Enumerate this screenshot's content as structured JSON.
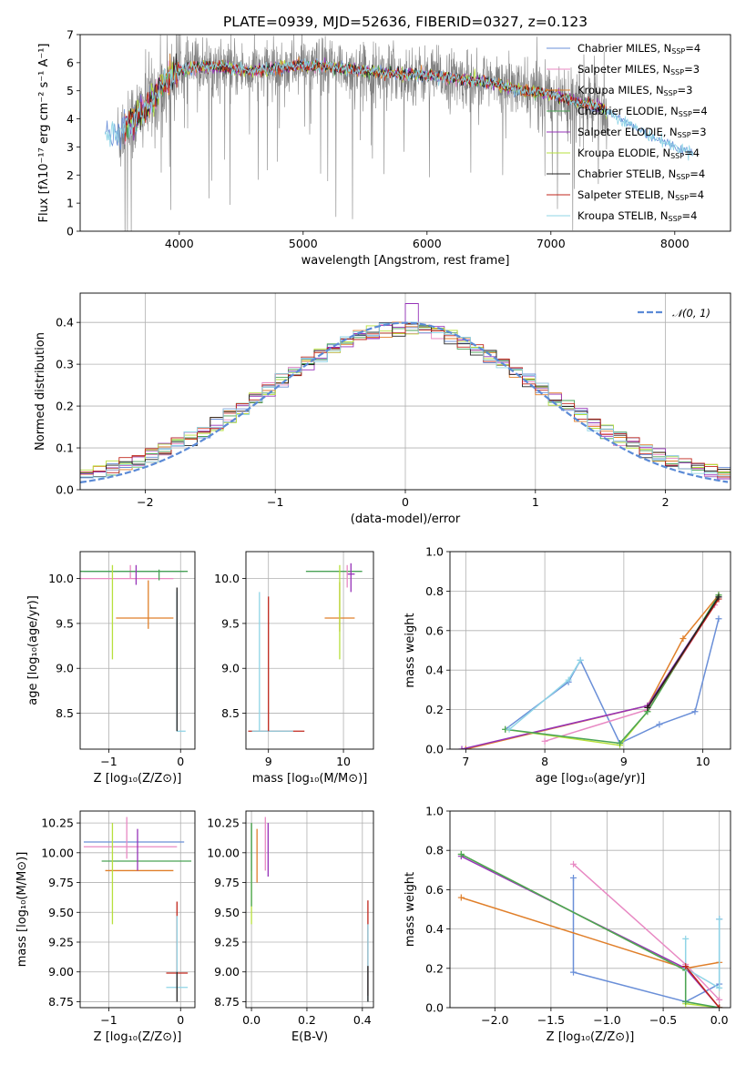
{
  "chart_data": [
    {
      "id": "spectrum",
      "type": "line",
      "title": "PLATE=0939, MJD=52636, FIBERID=0327, z=0.123",
      "xlabel": "wavelength [Angstrom, rest frame]",
      "ylabel": "Flux [fλ10⁻¹⁷ erg cm⁻² s⁻¹ A⁻¹]",
      "xlim": [
        3200,
        8450
      ],
      "ylim": [
        0,
        7
      ],
      "xticks": [
        4000,
        5000,
        6000,
        7000,
        8000
      ],
      "yticks": [
        0,
        1,
        2,
        3,
        4,
        5,
        6,
        7
      ],
      "grid": false,
      "legend_position": "right",
      "legend": [
        {
          "label": "Chabrier MILES, N",
          "sub": "SSP",
          "suffix": "=4",
          "color": "#6a8fd8"
        },
        {
          "label": "Salpeter MILES, N",
          "sub": "SSP",
          "suffix": "=3",
          "color": "#e889c3"
        },
        {
          "label": "Kroupa MILES, N",
          "sub": "SSP",
          "suffix": "=3",
          "color": "#e07f2a"
        },
        {
          "label": "Chabrier ELODIE, N",
          "sub": "SSP",
          "suffix": "=4",
          "color": "#4aa356"
        },
        {
          "label": "Salpeter ELODIE, N",
          "sub": "SSP",
          "suffix": "=3",
          "color": "#9632b8"
        },
        {
          "label": "Kroupa ELODIE, N",
          "sub": "SSP",
          "suffix": "=4",
          "color": "#b7e03c"
        },
        {
          "label": "Chabrier STELIB, N",
          "sub": "SSP",
          "suffix": "=4",
          "color": "#222222"
        },
        {
          "label": "Salpeter STELIB, N",
          "sub": "SSP",
          "suffix": "=4",
          "color": "#c0261b"
        },
        {
          "label": "Kroupa STELIB, N",
          "sub": "SSP",
          "suffix": "=4",
          "color": "#8fd4e6"
        }
      ],
      "data_color": "#808080",
      "model_curve": {
        "x": [
          3400,
          3500,
          3550,
          3650,
          3700,
          3800,
          3900,
          3950,
          4000,
          4200,
          4400,
          4600,
          4800,
          5000,
          5200,
          5500,
          5800,
          6000,
          6200,
          6500,
          6800,
          7000,
          7200,
          7400,
          7600,
          7800,
          8000,
          8150
        ],
        "y": [
          3.45,
          3.3,
          3.7,
          4.0,
          4.3,
          4.8,
          5.3,
          5.55,
          5.75,
          5.9,
          5.8,
          5.7,
          5.8,
          5.9,
          5.85,
          5.7,
          5.6,
          5.55,
          5.45,
          5.3,
          5.0,
          4.9,
          4.6,
          4.4,
          3.9,
          3.4,
          3.0,
          2.8
        ]
      }
    },
    {
      "id": "residuals",
      "type": "step",
      "xlabel": "(data-model)/error",
      "ylabel": "Normed distribution",
      "xlim": [
        -2.5,
        2.5
      ],
      "ylim": [
        0,
        0.47
      ],
      "xticks": [
        -2,
        -1,
        0,
        1,
        2
      ],
      "yticks": [
        0.0,
        0.1,
        0.2,
        0.3,
        0.4
      ],
      "grid": true,
      "legend_position": "top-right",
      "normal_label": "𝒩(0, 1)",
      "normal_color": "#5b8ad6",
      "series_colors": [
        "#6a8fd8",
        "#e889c3",
        "#e07f2a",
        "#4aa356",
        "#9632b8",
        "#b7e03c",
        "#222222",
        "#c0261b",
        "#8fd4e6"
      ]
    },
    {
      "id": "age-Z",
      "type": "errorbar",
      "xlabel": "Z [log₁₀(Z/Z⊙)]",
      "ylabel": "age  [log₁₀(age/yr)]",
      "xlim": [
        -1.4,
        0.2
      ],
      "ylim": [
        8.1,
        10.3
      ],
      "xticks": [
        -1,
        0
      ],
      "yticks": [
        8.5,
        9.0,
        9.5,
        10.0
      ],
      "grid": true,
      "points": [
        {
          "x": -0.05,
          "y": 10.08,
          "xerr": [
            1.3,
            0.1
          ],
          "yerr": [
            0.0,
            0.0
          ],
          "color": "#6a8fd8"
        },
        {
          "x": -0.7,
          "y": 10.0,
          "xerr": [
            0.7,
            0.6
          ],
          "yerr": [
            0.0,
            0.15
          ],
          "color": "#e889c3"
        },
        {
          "x": -0.45,
          "y": 9.56,
          "xerr": [
            0.45,
            0.35
          ],
          "yerr": [
            0.12,
            0.42
          ],
          "color": "#e07f2a"
        },
        {
          "x": -0.3,
          "y": 10.08,
          "xerr": [
            1.1,
            0.4
          ],
          "yerr": [
            0.1,
            0.02
          ],
          "color": "#4aa356"
        },
        {
          "x": -0.62,
          "y": 10.05,
          "xerr": [
            0.0,
            0.0
          ],
          "yerr": [
            0.12,
            0.1
          ],
          "color": "#9632b8"
        },
        {
          "x": -0.95,
          "y": 9.6,
          "xerr": [
            0.0,
            0.0
          ],
          "yerr": [
            0.5,
            0.55
          ],
          "color": "#b7e03c"
        },
        {
          "x": -0.05,
          "y": 8.3,
          "xerr": [
            0.0,
            0.12
          ],
          "yerr": [
            0.0,
            1.55
          ],
          "color": "#8fd4e6"
        },
        {
          "x": -0.05,
          "y": 9.5,
          "xerr": [
            0.0,
            0.0
          ],
          "yerr": [
            1.2,
            0.4
          ],
          "color": "#222222"
        }
      ]
    },
    {
      "id": "age-mass",
      "type": "errorbar",
      "xlabel": "mass [log₁₀(M/M⊙)]",
      "xlim": [
        8.7,
        10.4
      ],
      "ylim": [
        8.1,
        10.3
      ],
      "xticks": [
        9,
        10
      ],
      "yticks": [
        8.5,
        9.0,
        9.5,
        10.0
      ],
      "grid": true,
      "points": [
        {
          "x": 9.95,
          "y": 10.08,
          "xerr": [
            0.45,
            0.3
          ],
          "yerr": [
            0.0,
            0.0
          ],
          "color": "#4aa356"
        },
        {
          "x": 10.1,
          "y": 10.05,
          "xerr": [
            0.05,
            0.05
          ],
          "yerr": [
            0.2,
            0.12
          ],
          "color": "#9632b8"
        },
        {
          "x": 10.05,
          "y": 10.0,
          "xerr": [
            0.0,
            0.0
          ],
          "yerr": [
            0.1,
            0.15
          ],
          "color": "#e889c3"
        },
        {
          "x": 9.95,
          "y": 9.56,
          "xerr": [
            0.2,
            0.2
          ],
          "yerr": [
            0.15,
            0.4
          ],
          "color": "#e07f2a"
        },
        {
          "x": 9.95,
          "y": 9.7,
          "xerr": [
            0.0,
            0.0
          ],
          "yerr": [
            0.6,
            0.45
          ],
          "color": "#b7e03c"
        },
        {
          "x": 8.88,
          "y": 8.3,
          "xerr": [
            0.15,
            0.6
          ],
          "yerr": [
            0.0,
            0.0
          ],
          "color": "#c0261b"
        },
        {
          "x": 8.88,
          "y": 8.3,
          "xerr": [
            0.1,
            0.45
          ],
          "yerr": [
            0.0,
            1.55
          ],
          "color": "#8fd4e6"
        },
        {
          "x": 9.0,
          "y": 9.0,
          "xerr": [
            0.0,
            0.0
          ],
          "yerr": [
            0.7,
            0.8
          ],
          "color": "#c0261b"
        }
      ]
    },
    {
      "id": "massweight-age",
      "type": "line",
      "xlabel": "age  [log₁₀(age/yr)]",
      "ylabel": "mass weight",
      "xlim": [
        6.8,
        10.35
      ],
      "ylim": [
        0.0,
        1.0
      ],
      "xticks": [
        7,
        8,
        9,
        10
      ],
      "yticks": [
        0.0,
        0.2,
        0.4,
        0.6,
        0.8,
        1.0
      ],
      "grid": true,
      "series": [
        {
          "name": "",
          "color": "#6a8fd8",
          "x": [
            7.5,
            8.3,
            8.45,
            8.95,
            9.45,
            9.9,
            10.2
          ],
          "y": [
            0.1,
            0.34,
            0.45,
            0.03,
            0.125,
            0.19,
            0.66
          ]
        },
        {
          "name": "",
          "color": "#e889c3",
          "x": [
            8.0,
            9.3,
            10.15
          ],
          "y": [
            0.04,
            0.2,
            0.73
          ]
        },
        {
          "name": "",
          "color": "#e07f2a",
          "x": [
            7.0,
            9.3,
            9.75,
            10.2
          ],
          "y": [
            0.0,
            0.22,
            0.56,
            0.78
          ]
        },
        {
          "name": "",
          "color": "#9632b8",
          "x": [
            6.95,
            9.3,
            10.2
          ],
          "y": [
            0.0,
            0.22,
            0.77
          ]
        },
        {
          "name": "",
          "color": "#b7e03c",
          "x": [
            7.5,
            8.95,
            9.3,
            10.2
          ],
          "y": [
            0.1,
            0.02,
            0.19,
            0.78
          ]
        },
        {
          "name": "",
          "color": "#4aa356",
          "x": [
            7.5,
            8.95,
            9.3,
            10.2
          ],
          "y": [
            0.1,
            0.03,
            0.19,
            0.78
          ]
        },
        {
          "name": "",
          "color": "#8fd4e6",
          "x": [
            7.55,
            8.3,
            8.45
          ],
          "y": [
            0.1,
            0.35,
            0.45
          ]
        },
        {
          "name": "",
          "color": "#c0261b",
          "x": [
            9.3,
            10.2
          ],
          "y": [
            0.21,
            0.76
          ]
        },
        {
          "name": "",
          "color": "#222222",
          "x": [
            9.3,
            10.2
          ],
          "y": [
            0.21,
            0.77
          ]
        }
      ]
    },
    {
      "id": "mass-Z",
      "type": "errorbar",
      "xlabel": "Z [log₁₀(Z/Z⊙)]",
      "ylabel": "mass [log₁₀(M/M⊙)]",
      "xlim": [
        -1.4,
        0.2
      ],
      "ylim": [
        8.7,
        10.35
      ],
      "xticks": [
        -1,
        0
      ],
      "yticks": [
        8.75,
        9.0,
        9.25,
        9.5,
        9.75,
        10.0,
        10.25
      ],
      "grid": true,
      "points": [
        {
          "x": -0.55,
          "y": 10.09,
          "xerr": [
            0.8,
            0.6
          ],
          "yerr": [
            0.0,
            0.0
          ],
          "color": "#6a8fd8"
        },
        {
          "x": -0.6,
          "y": 10.05,
          "xerr": [
            0.75,
            0.55
          ],
          "yerr": [
            0.0,
            0.0
          ],
          "color": "#e889c3"
        },
        {
          "x": -0.55,
          "y": 9.85,
          "xerr": [
            0.5,
            0.45
          ],
          "yerr": [
            0.0,
            0.0
          ],
          "color": "#e07f2a"
        },
        {
          "x": -0.5,
          "y": 9.93,
          "xerr": [
            0.6,
            0.65
          ],
          "yerr": [
            0.0,
            0.0
          ],
          "color": "#4aa356"
        },
        {
          "x": -0.6,
          "y": 10.05,
          "xerr": [
            0.0,
            0.0
          ],
          "yerr": [
            0.2,
            0.15
          ],
          "color": "#9632b8"
        },
        {
          "x": -0.95,
          "y": 9.8,
          "xerr": [
            0.0,
            0.0
          ],
          "yerr": [
            0.4,
            0.45
          ],
          "color": "#b7e03c"
        },
        {
          "x": -0.75,
          "y": 10.05,
          "xerr": [
            0.0,
            0.0
          ],
          "yerr": [
            0.1,
            0.25
          ],
          "color": "#e889c3"
        },
        {
          "x": -0.05,
          "y": 8.99,
          "xerr": [
            0.15,
            0.15
          ],
          "yerr": [
            0.0,
            0.6
          ],
          "color": "#c0261b"
        },
        {
          "x": -0.05,
          "y": 8.87,
          "xerr": [
            0.15,
            0.15
          ],
          "yerr": [
            0.0,
            0.6
          ],
          "color": "#8fd4e6"
        },
        {
          "x": -0.05,
          "y": 8.9,
          "xerr": [
            0.0,
            0.0
          ],
          "yerr": [
            0.15,
            0.1
          ],
          "color": "#222222"
        }
      ]
    },
    {
      "id": "mass-EBV",
      "type": "errorbar",
      "xlabel": "E(B-V)",
      "xlim": [
        -0.02,
        0.44
      ],
      "ylim": [
        8.7,
        10.35
      ],
      "xticks": [
        0.0,
        0.2,
        0.4
      ],
      "yticks": [
        8.75,
        9.0,
        9.25,
        9.5,
        9.75,
        10.0,
        10.25
      ],
      "grid": true,
      "points": [
        {
          "x": 0.0,
          "y": 10.05,
          "xerr": [
            0.0,
            0.0
          ],
          "yerr": [
            0.2,
            0.2
          ],
          "color": "#6a8fd8"
        },
        {
          "x": 0.05,
          "y": 10.05,
          "xerr": [
            0.0,
            0.0
          ],
          "yerr": [
            0.2,
            0.25
          ],
          "color": "#e889c3"
        },
        {
          "x": 0.02,
          "y": 9.95,
          "xerr": [
            0.0,
            0.0
          ],
          "yerr": [
            0.2,
            0.25
          ],
          "color": "#e07f2a"
        },
        {
          "x": 0.0,
          "y": 9.85,
          "xerr": [
            0.0,
            0.0
          ],
          "yerr": [
            0.45,
            0.4
          ],
          "color": "#b7e03c"
        },
        {
          "x": 0.0,
          "y": 9.95,
          "xerr": [
            0.0,
            0.0
          ],
          "yerr": [
            0.4,
            0.3
          ],
          "color": "#4aa356"
        },
        {
          "x": 0.06,
          "y": 10.0,
          "xerr": [
            0.0,
            0.0
          ],
          "yerr": [
            0.2,
            0.25
          ],
          "color": "#9632b8"
        },
        {
          "x": 0.42,
          "y": 9.05,
          "xerr": [
            0.0,
            0.0
          ],
          "yerr": [
            0.25,
            0.55
          ],
          "color": "#c0261b"
        },
        {
          "x": 0.42,
          "y": 8.95,
          "xerr": [
            0.0,
            0.0
          ],
          "yerr": [
            0.2,
            0.45
          ],
          "color": "#8fd4e6"
        },
        {
          "x": 0.42,
          "y": 8.95,
          "xerr": [
            0.0,
            0.0
          ],
          "yerr": [
            0.2,
            0.1
          ],
          "color": "#222222"
        }
      ]
    },
    {
      "id": "massweight-Z",
      "type": "line",
      "xlabel": "Z [log₁₀(Z/Z⊙)]",
      "ylabel": "mass weight",
      "xlim": [
        -2.4,
        0.1
      ],
      "ylim": [
        0.0,
        1.0
      ],
      "xticks": [
        -2.0,
        -1.5,
        -1.0,
        -0.5,
        0.0
      ],
      "yticks": [
        0.0,
        0.2,
        0.4,
        0.6,
        0.8,
        1.0
      ],
      "grid": true,
      "series": [
        {
          "name": "",
          "color": "#6a8fd8",
          "x": [
            -1.3,
            -1.3,
            -0.3,
            0.0,
            0.0
          ],
          "y": [
            0.66,
            0.18,
            0.03,
            0.12,
            0.45
          ]
        },
        {
          "name": "",
          "color": "#e889c3",
          "x": [
            -1.3,
            -0.3,
            0.0
          ],
          "y": [
            0.73,
            0.22,
            0.04
          ]
        },
        {
          "name": "",
          "color": "#e07f2a",
          "x": [
            -2.3,
            -0.3,
            0.0
          ],
          "y": [
            0.56,
            0.2,
            0.23
          ]
        },
        {
          "name": "",
          "color": "#9632b8",
          "x": [
            -2.3,
            -0.3,
            0.0
          ],
          "y": [
            0.77,
            0.2,
            0.0
          ]
        },
        {
          "name": "",
          "color": "#b7e03c",
          "x": [
            -2.3,
            -0.3,
            -0.3,
            0.0
          ],
          "y": [
            0.78,
            0.19,
            0.02,
            0.0
          ]
        },
        {
          "name": "",
          "color": "#4aa356",
          "x": [
            -2.3,
            -0.3,
            -0.3,
            0.0
          ],
          "y": [
            0.78,
            0.19,
            0.03,
            0.0
          ]
        },
        {
          "name": "",
          "color": "#8fd4e6",
          "x": [
            -0.3,
            -0.3,
            0.0,
            0.0
          ],
          "y": [
            0.35,
            0.2,
            0.1,
            0.45
          ]
        },
        {
          "name": "",
          "color": "#c0261b",
          "x": [
            -0.3,
            0.0
          ],
          "y": [
            0.21,
            0.0
          ]
        }
      ]
    }
  ]
}
